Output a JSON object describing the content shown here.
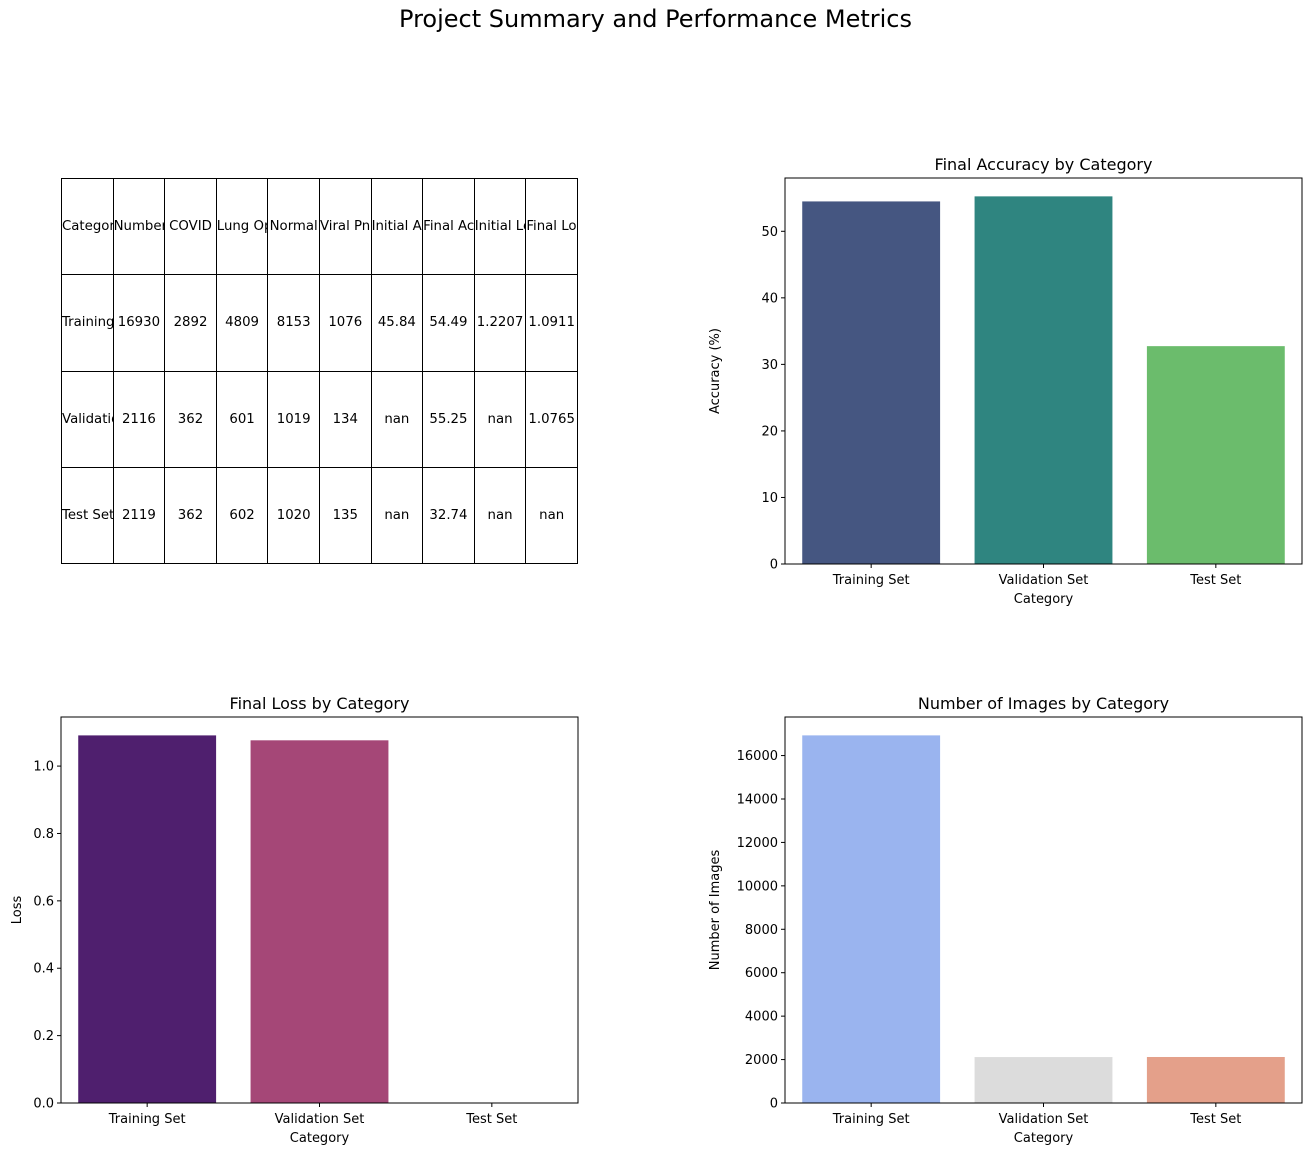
{
  "figure_title": "Project Summary and Performance Metrics",
  "table": {
    "columns": [
      "Category",
      "Number of Images",
      "COVID",
      "Lung Opacity",
      "Normal",
      "Viral Pneumonia",
      "Initial Accuracy",
      "Final Accuracy",
      "Initial Loss",
      "Final Loss"
    ],
    "rows": [
      [
        "Training Set",
        "16930",
        "2892",
        "4809",
        "8153",
        "1076",
        "45.84",
        "54.49",
        "1.2207",
        "1.0911"
      ],
      [
        "Validation Set",
        "2116",
        "362",
        "601",
        "1019",
        "134",
        "nan",
        "55.25",
        "nan",
        "1.0765"
      ],
      [
        "Test Set",
        "2119",
        "362",
        "602",
        "1020",
        "135",
        "nan",
        "32.74",
        "nan",
        "nan"
      ]
    ]
  },
  "chart_data": [
    {
      "type": "bar",
      "title": "Final Accuracy by Category",
      "xlabel": "Category",
      "ylabel": "Accuracy (%)",
      "categories": [
        "Training Set",
        "Validation Set",
        "Test Set"
      ],
      "values": [
        54.49,
        55.25,
        32.74
      ],
      "colors": [
        "#455681",
        "#2f8580",
        "#6bbc6c"
      ],
      "ylim": [
        0,
        58.01
      ],
      "yticks": [
        0,
        10,
        20,
        30,
        40,
        50
      ]
    },
    {
      "type": "bar",
      "title": "Final Loss by Category",
      "xlabel": "Category",
      "ylabel": "Loss",
      "categories": [
        "Training Set",
        "Validation Set",
        "Test Set"
      ],
      "values": [
        1.0911,
        1.0765,
        null
      ],
      "colors": [
        "#4f1f6e",
        "#a54777",
        "#f6a47a"
      ],
      "ylim": [
        0,
        1.1457
      ],
      "yticks": [
        0.0,
        0.2,
        0.4,
        0.6,
        0.8,
        1.0
      ]
    },
    {
      "type": "bar",
      "title": "Number of Images by Category",
      "xlabel": "Category",
      "ylabel": "Number of Images",
      "categories": [
        "Training Set",
        "Validation Set",
        "Test Set"
      ],
      "values": [
        16930,
        2116,
        2119
      ],
      "colors": [
        "#9ab4ef",
        "#dcdcdc",
        "#e4a08a"
      ],
      "ylim": [
        0,
        17776
      ],
      "yticks": [
        0,
        2000,
        4000,
        6000,
        8000,
        10000,
        12000,
        14000,
        16000
      ]
    }
  ]
}
